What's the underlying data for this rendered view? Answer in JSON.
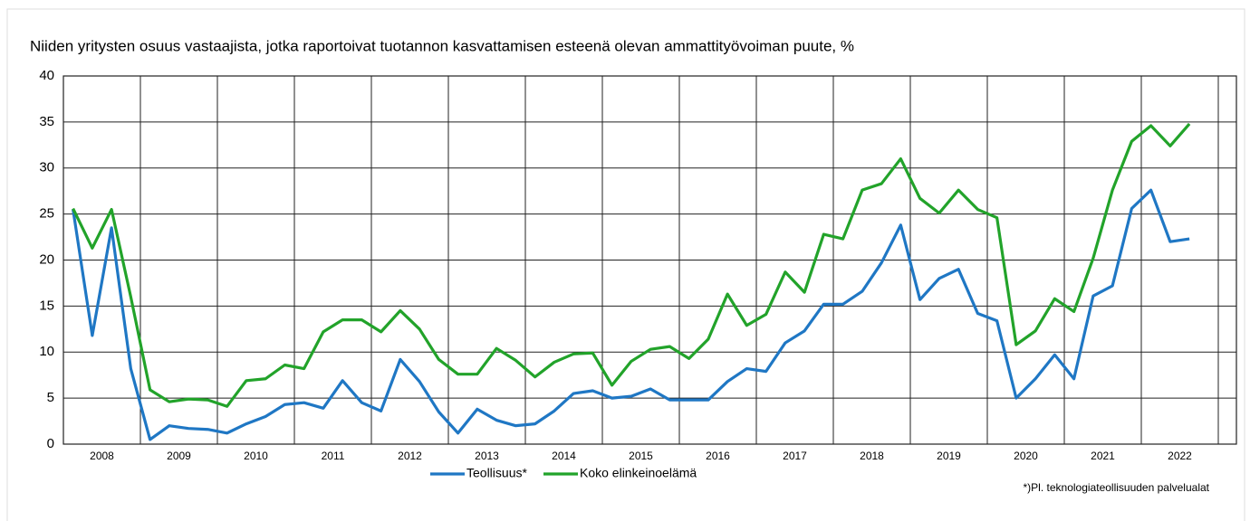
{
  "chart_data": {
    "type": "line",
    "title": "Niiden yritysten osuus vastaajista, jotka raportoivat tuotannon kasvattamisen esteenä olevan ammattityövoiman puute, %",
    "footnote": "*)Pl. teknologiateollisuuden palvelualat",
    "categories": [
      null,
      "2008",
      null,
      null,
      null,
      "2009",
      null,
      null,
      null,
      "2010",
      null,
      null,
      null,
      "2011",
      null,
      null,
      null,
      "2012",
      null,
      null,
      null,
      "2013",
      null,
      null,
      null,
      "2014",
      null,
      null,
      null,
      "2015",
      null,
      null,
      null,
      "2016",
      null,
      null,
      null,
      "2017",
      null,
      null,
      null,
      "2018",
      null,
      null,
      null,
      "2019",
      null,
      null,
      null,
      "2020",
      null,
      null,
      null,
      "2021",
      null,
      null,
      null,
      "2022",
      null
    ],
    "series": [
      {
        "name": "Teollisuus*",
        "color": "#1f77c4",
        "values": [
          25.5,
          11.8,
          23.5,
          8.2,
          0.5,
          2.0,
          1.7,
          1.6,
          1.2,
          2.2,
          3.0,
          4.3,
          4.5,
          3.9,
          6.9,
          4.5,
          3.6,
          9.2,
          6.8,
          3.5,
          1.2,
          3.8,
          2.6,
          2.0,
          2.2,
          3.6,
          5.5,
          5.8,
          5.0,
          5.2,
          6.0,
          4.8,
          4.8,
          4.8,
          6.8,
          8.2,
          7.9,
          11.0,
          12.3,
          15.2,
          15.2,
          16.6,
          19.7,
          23.8,
          15.7,
          18.0,
          19.0,
          14.2,
          13.4,
          5.0,
          7.1,
          9.7,
          7.1,
          16.1,
          17.2,
          25.6,
          27.6,
          22.0,
          22.3
        ]
      },
      {
        "name": "Koko elinkeinoelämä",
        "color": "#22a32a",
        "values": [
          25.6,
          21.3,
          25.5,
          16.0,
          5.9,
          4.6,
          4.9,
          4.8,
          4.1,
          6.9,
          7.1,
          8.6,
          8.2,
          12.2,
          13.5,
          13.5,
          12.2,
          14.5,
          12.5,
          9.2,
          7.6,
          7.6,
          10.4,
          9.1,
          7.3,
          8.9,
          9.8,
          9.9,
          6.4,
          9.0,
          10.3,
          10.6,
          9.3,
          11.4,
          16.3,
          12.9,
          14.1,
          18.7,
          16.5,
          22.8,
          22.3,
          27.6,
          28.3,
          31.0,
          26.7,
          25.1,
          27.6,
          25.5,
          24.6,
          10.8,
          12.3,
          15.8,
          14.4,
          20.2,
          27.6,
          32.9,
          34.6,
          32.4,
          34.8
        ]
      }
    ],
    "ylim": [
      0,
      40
    ],
    "yticks": [
      0,
      5,
      10,
      15,
      20,
      25,
      30,
      35,
      40
    ],
    "grid": true
  }
}
